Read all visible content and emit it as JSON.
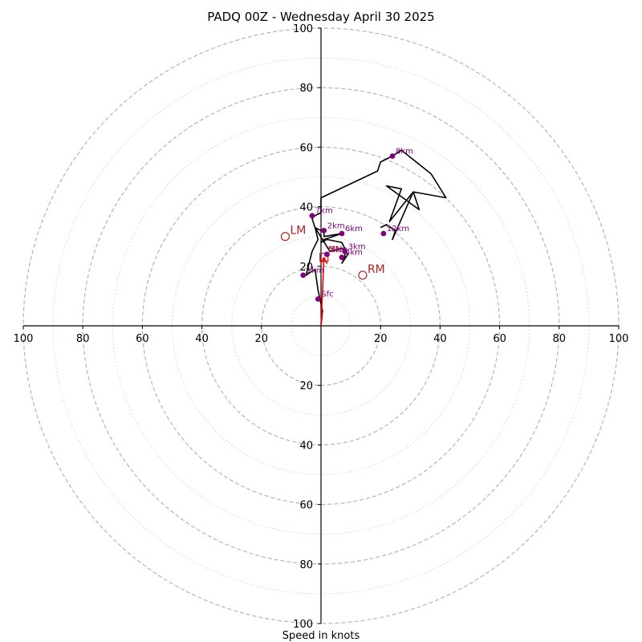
{
  "chart_data": {
    "type": "scatter",
    "title": "PADQ 00Z - Wednesday April 30 2025",
    "xlabel": "Speed in knots",
    "ylabel": "",
    "xlim": [
      -100,
      100
    ],
    "ylim": [
      -100,
      100
    ],
    "tick_labels": {
      "x_negative": [
        "100",
        "80",
        "60",
        "40",
        "20"
      ],
      "x_positive": [
        "20",
        "40",
        "60",
        "80",
        "100"
      ],
      "y_positive": [
        "20",
        "40",
        "60",
        "80",
        "100"
      ],
      "y_negative": [
        "20",
        "40",
        "60",
        "80",
        "100"
      ]
    },
    "rings_major": [
      20,
      40,
      60,
      80,
      100
    ],
    "rings_minor": [
      10,
      30,
      50,
      70,
      90
    ],
    "hodograph_trace": [
      [
        0,
        0
      ],
      [
        0.5,
        5
      ],
      [
        -1,
        12
      ],
      [
        -2,
        19
      ],
      [
        -5,
        17
      ],
      [
        -3,
        25
      ],
      [
        -1,
        29
      ],
      [
        -2,
        33
      ],
      [
        0,
        32
      ],
      [
        1,
        32
      ],
      [
        1,
        30
      ],
      [
        7,
        31
      ],
      [
        1,
        29
      ],
      [
        0,
        28
      ],
      [
        2,
        29
      ],
      [
        7,
        28
      ],
      [
        8,
        26
      ],
      [
        8,
        23
      ],
      [
        7,
        21
      ],
      [
        9,
        24
      ],
      [
        7,
        26
      ],
      [
        3,
        25
      ],
      [
        -2,
        33
      ],
      [
        -3,
        36
      ],
      [
        -2,
        37
      ],
      [
        0,
        38
      ],
      [
        0,
        43
      ],
      [
        19,
        52
      ],
      [
        20,
        55
      ],
      [
        24,
        57
      ],
      [
        27,
        59
      ],
      [
        32,
        55
      ],
      [
        37,
        51
      ],
      [
        42,
        43
      ],
      [
        31,
        45
      ],
      [
        33,
        39
      ],
      [
        22,
        47
      ],
      [
        27,
        46
      ],
      [
        23,
        35
      ],
      [
        31,
        45
      ],
      [
        24,
        29
      ],
      [
        25,
        32
      ],
      [
        22,
        34
      ],
      [
        20,
        33
      ]
    ],
    "height_markers": [
      {
        "label": "Sfc",
        "x": -1,
        "y": 9
      },
      {
        "label": "1km",
        "x": -6,
        "y": 17
      },
      {
        "label": "2km",
        "x": 1,
        "y": 32
      },
      {
        "label": "3km",
        "x": 8,
        "y": 25
      },
      {
        "label": "4km",
        "x": 7,
        "y": 23
      },
      {
        "label": "5km",
        "x": 2,
        "y": 24
      },
      {
        "label": "6km",
        "x": 7,
        "y": 31
      },
      {
        "label": "7km",
        "x": -3,
        "y": 37
      },
      {
        "label": "8km",
        "x": 24,
        "y": 57
      },
      {
        "label": "12km",
        "x": 21,
        "y": 31
      }
    ],
    "storm_motion": {
      "LM": {
        "label": "LM",
        "x": -12,
        "y": 30
      },
      "RM": {
        "label": "RM",
        "x": 14,
        "y": 17
      },
      "MN": {
        "label": "MN",
        "x": 1,
        "y": 23
      },
      "vector": {
        "from": [
          0,
          0
        ],
        "to": [
          1,
          23
        ]
      }
    },
    "grid": true,
    "colors": {
      "trace": "#000000",
      "markers": "#800080",
      "storm_motion": "#b22222",
      "vector": "#ff0000",
      "major_ring": "#b5b5b5",
      "minor_ring": "#d0d0d0"
    }
  }
}
